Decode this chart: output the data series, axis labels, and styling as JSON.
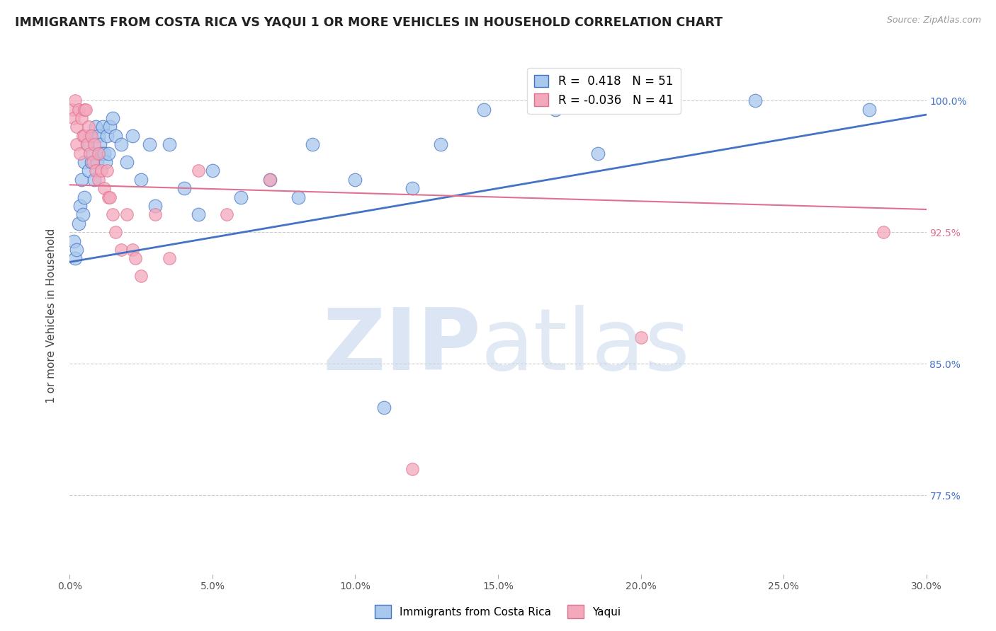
{
  "title": "IMMIGRANTS FROM COSTA RICA VS YAQUI 1 OR MORE VEHICLES IN HOUSEHOLD CORRELATION CHART",
  "source": "Source: ZipAtlas.com",
  "ylabel": "1 or more Vehicles in Household",
  "xlim": [
    0.0,
    30.0
  ],
  "ylim": [
    73.0,
    102.5
  ],
  "yticks": [
    77.5,
    85.0,
    92.5,
    100.0
  ],
  "xticks": [
    0.0,
    5.0,
    10.0,
    15.0,
    20.0,
    25.0,
    30.0
  ],
  "blue_R": 0.418,
  "blue_N": 51,
  "pink_R": -0.036,
  "pink_N": 41,
  "blue_color": "#A8C8EE",
  "pink_color": "#F4A8BC",
  "blue_line_color": "#4472C4",
  "pink_line_color": "#E07090",
  "blue_scatter": [
    [
      0.15,
      92.0
    ],
    [
      0.2,
      91.0
    ],
    [
      0.25,
      91.5
    ],
    [
      0.3,
      93.0
    ],
    [
      0.35,
      94.0
    ],
    [
      0.4,
      95.5
    ],
    [
      0.45,
      93.5
    ],
    [
      0.5,
      96.5
    ],
    [
      0.5,
      94.5
    ],
    [
      0.6,
      97.5
    ],
    [
      0.65,
      96.0
    ],
    [
      0.7,
      98.0
    ],
    [
      0.75,
      96.5
    ],
    [
      0.8,
      97.0
    ],
    [
      0.85,
      95.5
    ],
    [
      0.9,
      98.5
    ],
    [
      0.95,
      96.5
    ],
    [
      1.0,
      98.0
    ],
    [
      1.05,
      97.5
    ],
    [
      1.1,
      97.0
    ],
    [
      1.15,
      98.5
    ],
    [
      1.2,
      97.0
    ],
    [
      1.25,
      96.5
    ],
    [
      1.3,
      98.0
    ],
    [
      1.35,
      97.0
    ],
    [
      1.4,
      98.5
    ],
    [
      1.5,
      99.0
    ],
    [
      1.6,
      98.0
    ],
    [
      1.8,
      97.5
    ],
    [
      2.0,
      96.5
    ],
    [
      2.2,
      98.0
    ],
    [
      2.5,
      95.5
    ],
    [
      2.8,
      97.5
    ],
    [
      3.0,
      94.0
    ],
    [
      3.5,
      97.5
    ],
    [
      4.0,
      95.0
    ],
    [
      4.5,
      93.5
    ],
    [
      5.0,
      96.0
    ],
    [
      6.0,
      94.5
    ],
    [
      7.0,
      95.5
    ],
    [
      8.0,
      94.5
    ],
    [
      8.5,
      97.5
    ],
    [
      10.0,
      95.5
    ],
    [
      11.0,
      82.5
    ],
    [
      12.0,
      95.0
    ],
    [
      13.0,
      97.5
    ],
    [
      14.5,
      99.5
    ],
    [
      17.0,
      99.5
    ],
    [
      18.5,
      97.0
    ],
    [
      24.0,
      100.0
    ],
    [
      28.0,
      99.5
    ]
  ],
  "pink_scatter": [
    [
      0.1,
      99.5
    ],
    [
      0.15,
      99.0
    ],
    [
      0.2,
      100.0
    ],
    [
      0.25,
      98.5
    ],
    [
      0.25,
      97.5
    ],
    [
      0.3,
      99.5
    ],
    [
      0.35,
      97.0
    ],
    [
      0.4,
      99.0
    ],
    [
      0.45,
      98.0
    ],
    [
      0.5,
      99.5
    ],
    [
      0.5,
      98.0
    ],
    [
      0.55,
      99.5
    ],
    [
      0.6,
      97.5
    ],
    [
      0.65,
      98.5
    ],
    [
      0.7,
      97.0
    ],
    [
      0.75,
      98.0
    ],
    [
      0.8,
      96.5
    ],
    [
      0.85,
      97.5
    ],
    [
      0.9,
      96.0
    ],
    [
      1.0,
      97.0
    ],
    [
      1.0,
      95.5
    ],
    [
      1.1,
      96.0
    ],
    [
      1.2,
      95.0
    ],
    [
      1.3,
      96.0
    ],
    [
      1.35,
      94.5
    ],
    [
      1.4,
      94.5
    ],
    [
      1.5,
      93.5
    ],
    [
      1.6,
      92.5
    ],
    [
      1.8,
      91.5
    ],
    [
      2.0,
      93.5
    ],
    [
      2.2,
      91.5
    ],
    [
      2.3,
      91.0
    ],
    [
      2.5,
      90.0
    ],
    [
      3.0,
      93.5
    ],
    [
      3.5,
      91.0
    ],
    [
      4.5,
      96.0
    ],
    [
      5.5,
      93.5
    ],
    [
      7.0,
      95.5
    ],
    [
      12.0,
      79.0
    ],
    [
      20.0,
      86.5
    ],
    [
      28.5,
      92.5
    ]
  ],
  "blue_trendline_x": [
    0.0,
    30.0
  ],
  "blue_trendline_y": [
    90.8,
    99.2
  ],
  "pink_trendline_x": [
    0.0,
    30.0
  ],
  "pink_trendline_y": [
    95.2,
    93.8
  ],
  "background_color": "#FFFFFF",
  "grid_color": "#CCCCCC",
  "title_fontsize": 12.5,
  "axis_label_fontsize": 11,
  "tick_fontsize": 10,
  "legend_fontsize": 12,
  "right_tick_blue": "#4472C4",
  "right_tick_pink": "#E07090"
}
